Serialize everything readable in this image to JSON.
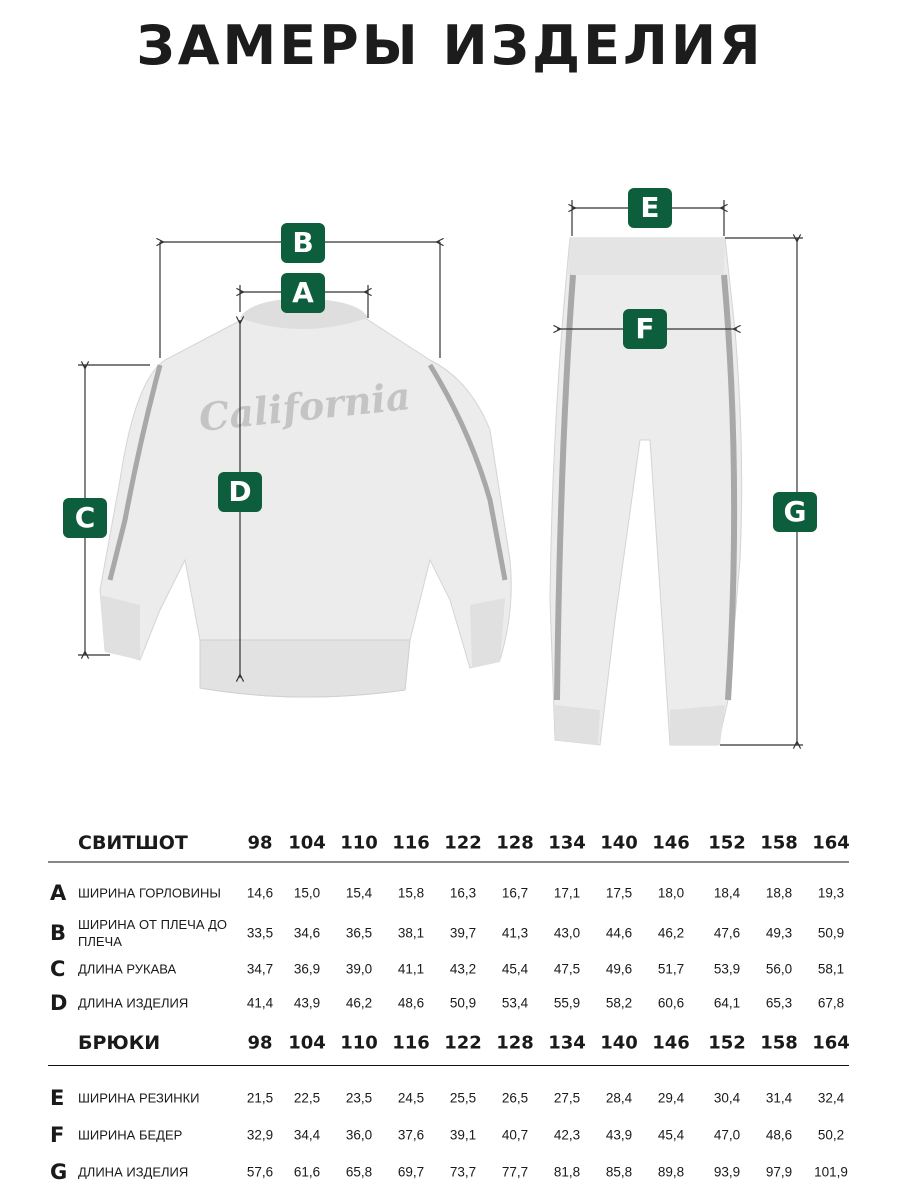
{
  "title": "ЗАМЕРЫ ИЗДЕЛИЯ",
  "colors": {
    "badge": "#0d5e3c",
    "text": "#1c1c1c"
  },
  "illustration": {
    "print_text": "California",
    "badges": [
      "A",
      "B",
      "C",
      "D",
      "E",
      "F",
      "G"
    ]
  },
  "sizes": [
    "98",
    "104",
    "110",
    "116",
    "122",
    "128",
    "134",
    "140",
    "146",
    "152",
    "158",
    "164"
  ],
  "tables": [
    {
      "name": "СВИТШОТ",
      "rows": [
        {
          "letter": "A",
          "label": "ШИРИНА ГОРЛОВИНЫ",
          "values": [
            "14,6",
            "15,0",
            "15,4",
            "15,8",
            "16,3",
            "16,7",
            "17,1",
            "17,5",
            "18,0",
            "18,4",
            "18,8",
            "19,3"
          ]
        },
        {
          "letter": "B",
          "label": "ШИРИНА ОТ ПЛЕЧА ДО ПЛЕЧА",
          "values": [
            "33,5",
            "34,6",
            "36,5",
            "38,1",
            "39,7",
            "41,3",
            "43,0",
            "44,6",
            "46,2",
            "47,6",
            "49,3",
            "50,9"
          ]
        },
        {
          "letter": "C",
          "label": "ДЛИНА РУКАВА",
          "values": [
            "34,7",
            "36,9",
            "39,0",
            "41,1",
            "43,2",
            "45,4",
            "47,5",
            "49,6",
            "51,7",
            "53,9",
            "56,0",
            "58,1"
          ]
        },
        {
          "letter": "D",
          "label": "ДЛИНА ИЗДЕЛИЯ",
          "values": [
            "41,4",
            "43,9",
            "46,2",
            "48,6",
            "50,9",
            "53,4",
            "55,9",
            "58,2",
            "60,6",
            "64,1",
            "65,3",
            "67,8"
          ]
        }
      ]
    },
    {
      "name": "БРЮКИ",
      "rows": [
        {
          "letter": "E",
          "label": "ШИРИНА РЕЗИНКИ",
          "values": [
            "21,5",
            "22,5",
            "23,5",
            "24,5",
            "25,5",
            "26,5",
            "27,5",
            "28,4",
            "29,4",
            "30,4",
            "31,4",
            "32,4"
          ]
        },
        {
          "letter": "F",
          "label": "ШИРИНА БЕДЕР",
          "values": [
            "32,9",
            "34,4",
            "36,0",
            "37,6",
            "39,1",
            "40,7",
            "42,3",
            "43,9",
            "45,4",
            "47,0",
            "48,6",
            "50,2"
          ]
        },
        {
          "letter": "G",
          "label": "ДЛИНА ИЗДЕЛИЯ",
          "values": [
            "57,6",
            "61,6",
            "65,8",
            "69,7",
            "73,7",
            "77,7",
            "81,8",
            "85,8",
            "89,8",
            "93,9",
            "97,9",
            "101,9"
          ]
        }
      ]
    }
  ]
}
